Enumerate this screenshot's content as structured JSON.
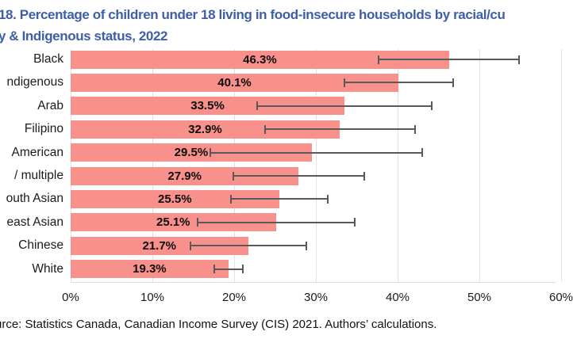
{
  "title": {
    "line1": "18. Percentage of children under 18 living in food-insecure households by racial/cu",
    "line2": "y & Indigenous status, 2022",
    "color": "#3E5EA9"
  },
  "source": "urce: Statistics Canada, Canadian Income Survey (CIS) 2021. Authors’ calculations.",
  "chart_data": {
    "type": "bar",
    "orientation": "horizontal",
    "categories": [
      "Black",
      "ndigenous",
      "Arab",
      "Filipino",
      "American",
      "/ multiple",
      "outh Asian",
      "east Asian",
      "Chinese",
      "White"
    ],
    "values": [
      46.3,
      40.1,
      33.5,
      32.9,
      29.5,
      27.9,
      25.5,
      25.1,
      21.7,
      19.3
    ],
    "value_labels": [
      "46.3%",
      "40.1%",
      "33.5%",
      "32.9%",
      "29.5%",
      "27.9%",
      "25.5%",
      "25.1%",
      "21.7%",
      "19.3%"
    ],
    "error_low": [
      37.7,
      33.5,
      22.8,
      23.8,
      17.1,
      19.9,
      19.6,
      15.5,
      14.7,
      17.6
    ],
    "error_high": [
      54.9,
      46.8,
      44.2,
      42.1,
      43.0,
      35.9,
      31.5,
      34.8,
      28.8,
      21.1
    ],
    "x_ticks": [
      "0%",
      "10%",
      "20%",
      "30%",
      "40%",
      "50%",
      "60%"
    ],
    "x_tick_values": [
      0,
      10,
      20,
      30,
      40,
      50,
      60
    ],
    "xlim": [
      0,
      60
    ],
    "grid": true,
    "legend": false,
    "bar_color": "#F8908B",
    "error_color": "#595959",
    "grid_color": "#E2E2E2"
  }
}
